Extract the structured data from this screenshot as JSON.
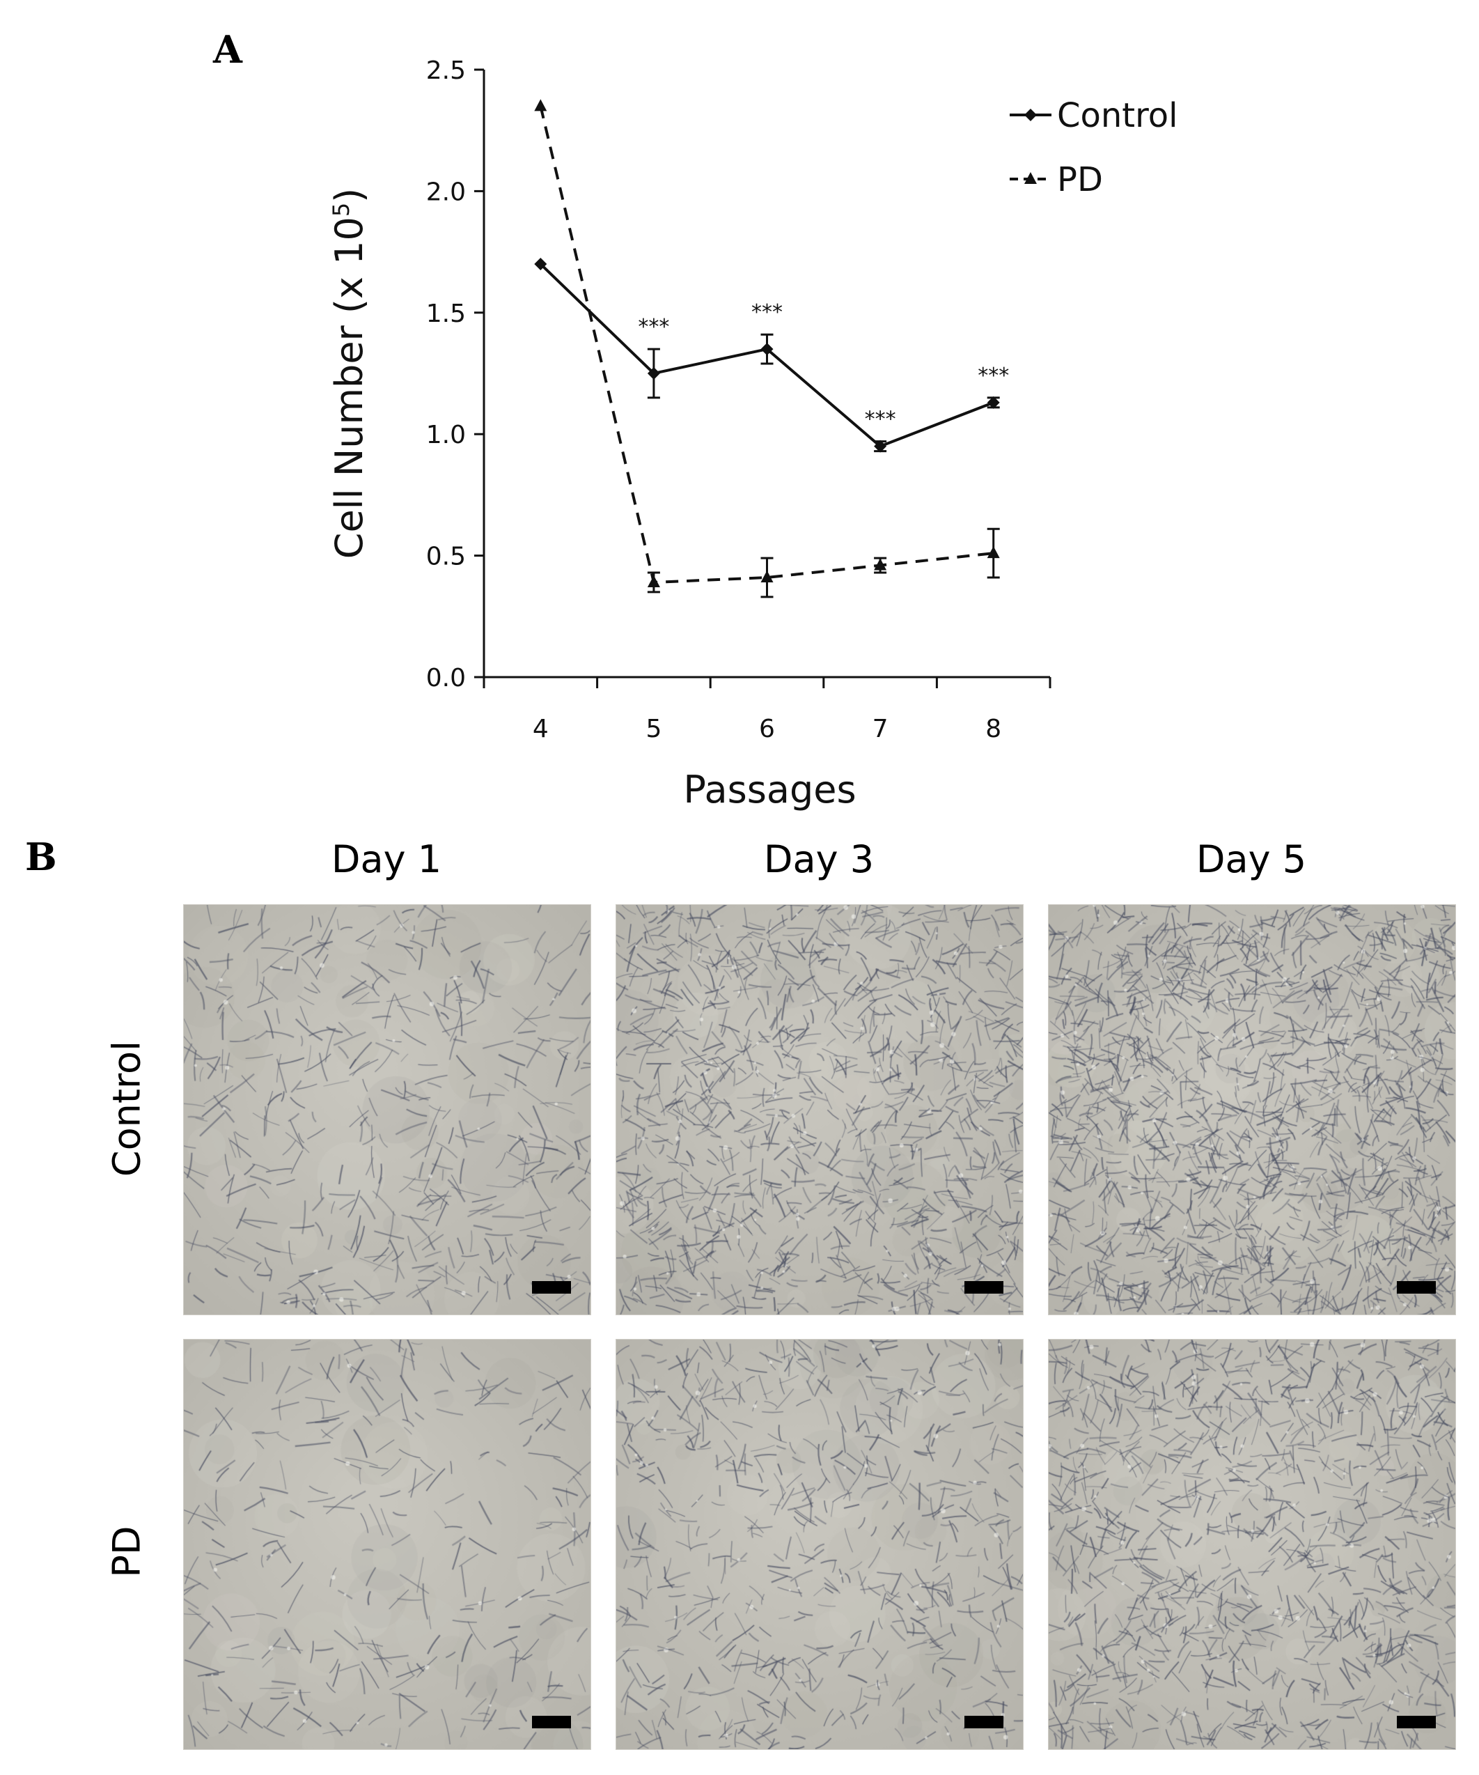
{
  "panel_a": {
    "letter": "A",
    "legend": {
      "entries": [
        "Control",
        "PD"
      ],
      "placement": "top-right"
    },
    "significance_marker": "***"
  },
  "chart_data": {
    "type": "line",
    "title": "",
    "xlabel": "Passages",
    "ylabel": "Cell Number  (x 10",
    "ylabel_superscript": "5",
    "ylabel_suffix": ")",
    "x": [
      4,
      5,
      6,
      7,
      8
    ],
    "ylim": [
      0.0,
      2.5
    ],
    "yticks": [
      "0.0",
      "0.5",
      "1.0",
      "1.5",
      "2.0",
      "2.5"
    ],
    "xticks": [
      "4",
      "5",
      "6",
      "7",
      "8"
    ],
    "grid": false,
    "series": [
      {
        "name": "Control",
        "line_style": "solid",
        "marker": "diamond",
        "values": [
          1.7,
          1.25,
          1.35,
          0.95,
          1.13
        ],
        "errors": [
          0.0,
          0.1,
          0.06,
          0.02,
          0.02
        ]
      },
      {
        "name": "PD",
        "line_style": "dashed",
        "marker": "triangle",
        "values": [
          2.35,
          0.39,
          0.41,
          0.46,
          0.51
        ],
        "errors": [
          0.0,
          0.04,
          0.08,
          0.03,
          0.1
        ]
      }
    ],
    "significance": [
      {
        "x": 5,
        "label": "***"
      },
      {
        "x": 6,
        "label": "***"
      },
      {
        "x": 7,
        "label": "***"
      },
      {
        "x": 8,
        "label": "***"
      }
    ]
  },
  "panel_b": {
    "letter": "B",
    "columns": [
      "Day 1",
      "Day 3",
      "Day 5"
    ],
    "rows": [
      "Control",
      "PD"
    ],
    "images": [
      {
        "row": "Control",
        "day": "Day 1",
        "density": 0.25
      },
      {
        "row": "Control",
        "day": "Day 3",
        "density": 0.7
      },
      {
        "row": "Control",
        "day": "Day 5",
        "density": 1.0
      },
      {
        "row": "PD",
        "day": "Day 1",
        "density": 0.12
      },
      {
        "row": "PD",
        "day": "Day 3",
        "density": 0.35
      },
      {
        "row": "PD",
        "day": "Day 5",
        "density": 0.65
      }
    ]
  }
}
